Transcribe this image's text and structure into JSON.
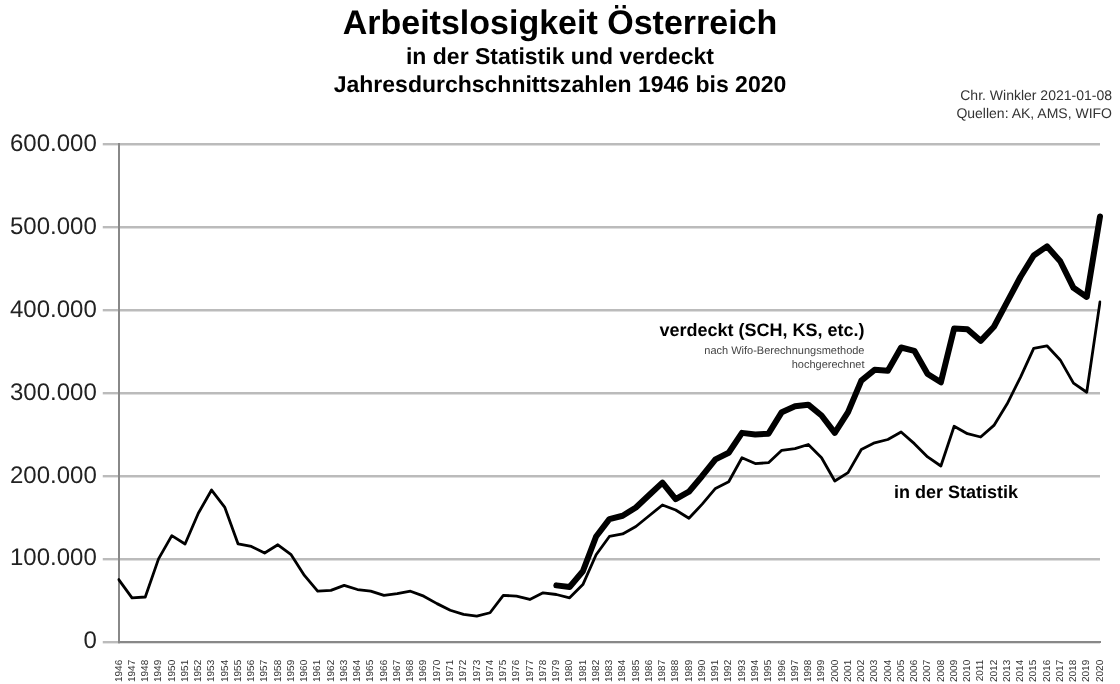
{
  "chart_data": {
    "type": "line",
    "title": "Arbeitslosigkeit Österreich",
    "subtitle": "in der Statistik und verdeckt\nJahresdurchschnittszahlen 1946 bis 2020",
    "annotations": [
      "Chr. Winkler 2021-01-08",
      "Quellen: AK, AMS, WIFO",
      "nach Wifo-Berechnungsmethode hochgerechnet"
    ],
    "categories": [
      "1946",
      "1947",
      "1948",
      "1949",
      "1950",
      "1951",
      "1952",
      "1953",
      "1954",
      "1955",
      "1956",
      "1957",
      "1958",
      "1959",
      "1960",
      "1961",
      "1962",
      "1963",
      "1964",
      "1965",
      "1966",
      "1967",
      "1968",
      "1969",
      "1970",
      "1971",
      "1972",
      "1973",
      "1974",
      "1975",
      "1976",
      "1977",
      "1978",
      "1979",
      "1980",
      "1981",
      "1982",
      "1983",
      "1984",
      "1985",
      "1986",
      "1987",
      "1988",
      "1989",
      "1990",
      "1991",
      "1992",
      "1993",
      "1994",
      "1995",
      "1996",
      "1997",
      "1998",
      "1999",
      "2000",
      "2001",
      "2002",
      "2003",
      "2004",
      "2005",
      "2006",
      "2007",
      "2008",
      "2009",
      "2010",
      "2011",
      "2012",
      "2013",
      "2014",
      "2015",
      "2016",
      "2017",
      "2018",
      "2019",
      "2020"
    ],
    "series": [
      {
        "name": "in der Statistik",
        "color": "#000000",
        "values": [
          75000,
          53000,
          54000,
          100000,
          128000,
          118000,
          155000,
          183000,
          162000,
          118000,
          115000,
          107000,
          117000,
          105000,
          80000,
          61000,
          62000,
          68000,
          63000,
          61000,
          56000,
          58000,
          61000,
          55000,
          46000,
          38000,
          33000,
          31000,
          35000,
          56000,
          55000,
          51000,
          59000,
          57000,
          53000,
          69000,
          105000,
          127000,
          130000,
          139000,
          152000,
          165000,
          159000,
          149000,
          166000,
          185000,
          193000,
          222000,
          215000,
          216000,
          231000,
          233000,
          238000,
          222000,
          194000,
          204000,
          232000,
          240000,
          244000,
          253000,
          239000,
          223000,
          212000,
          260000,
          251000,
          247000,
          261000,
          287000,
          319000,
          354000,
          357000,
          340000,
          312000,
          301000,
          410000
        ]
      },
      {
        "name": "verdeckt (SCH, KS, etc.)",
        "color": "#000000",
        "values": [
          null,
          null,
          null,
          null,
          null,
          null,
          null,
          null,
          null,
          null,
          null,
          null,
          null,
          null,
          null,
          null,
          null,
          null,
          null,
          null,
          null,
          null,
          null,
          null,
          null,
          null,
          null,
          null,
          null,
          null,
          null,
          null,
          null,
          68000,
          66000,
          85000,
          127000,
          148000,
          152000,
          162000,
          177000,
          192000,
          172000,
          181000,
          200000,
          220000,
          228000,
          252000,
          250000,
          251000,
          277000,
          284000,
          286000,
          273000,
          252000,
          277000,
          315000,
          328000,
          327000,
          355000,
          351000,
          323000,
          313000,
          378000,
          377000,
          363000,
          380000,
          410000,
          440000,
          466000,
          477000,
          459000,
          427000,
          416000,
          513000
        ]
      }
    ],
    "ylim": [
      0,
      600000
    ],
    "yticks": [
      {
        "value": 0,
        "label": "0"
      },
      {
        "value": 100000,
        "label": "100.000"
      },
      {
        "value": 200000,
        "label": "200.000"
      },
      {
        "value": 300000,
        "label": "300.000"
      },
      {
        "value": 400000,
        "label": "400.000"
      },
      {
        "value": 500000,
        "label": "500.000"
      },
      {
        "value": 600000,
        "label": "600.000"
      }
    ],
    "grid": "y",
    "legend": false,
    "marker": "none",
    "line_style": "solid"
  }
}
